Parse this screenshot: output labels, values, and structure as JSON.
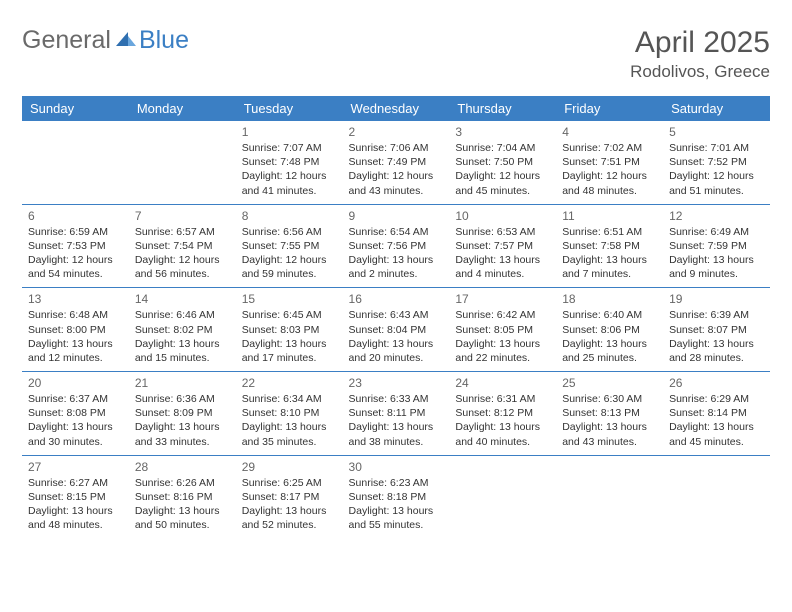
{
  "brand": {
    "part1": "General",
    "part2": "Blue"
  },
  "title": "April 2025",
  "location": "Rodolivos, Greece",
  "colors": {
    "header_bg": "#3b7fc4",
    "header_text": "#ffffff",
    "border": "#3b7fc4",
    "body_text": "#333333",
    "daynum": "#666666",
    "logo_gray": "#6a6a6a",
    "logo_blue": "#3b7fc4",
    "bg": "#ffffff"
  },
  "weekdays": [
    "Sunday",
    "Monday",
    "Tuesday",
    "Wednesday",
    "Thursday",
    "Friday",
    "Saturday"
  ],
  "weeks": [
    [
      null,
      null,
      {
        "d": "1",
        "sr": "Sunrise: 7:07 AM",
        "ss": "Sunset: 7:48 PM",
        "dl1": "Daylight: 12 hours",
        "dl2": "and 41 minutes."
      },
      {
        "d": "2",
        "sr": "Sunrise: 7:06 AM",
        "ss": "Sunset: 7:49 PM",
        "dl1": "Daylight: 12 hours",
        "dl2": "and 43 minutes."
      },
      {
        "d": "3",
        "sr": "Sunrise: 7:04 AM",
        "ss": "Sunset: 7:50 PM",
        "dl1": "Daylight: 12 hours",
        "dl2": "and 45 minutes."
      },
      {
        "d": "4",
        "sr": "Sunrise: 7:02 AM",
        "ss": "Sunset: 7:51 PM",
        "dl1": "Daylight: 12 hours",
        "dl2": "and 48 minutes."
      },
      {
        "d": "5",
        "sr": "Sunrise: 7:01 AM",
        "ss": "Sunset: 7:52 PM",
        "dl1": "Daylight: 12 hours",
        "dl2": "and 51 minutes."
      }
    ],
    [
      {
        "d": "6",
        "sr": "Sunrise: 6:59 AM",
        "ss": "Sunset: 7:53 PM",
        "dl1": "Daylight: 12 hours",
        "dl2": "and 54 minutes."
      },
      {
        "d": "7",
        "sr": "Sunrise: 6:57 AM",
        "ss": "Sunset: 7:54 PM",
        "dl1": "Daylight: 12 hours",
        "dl2": "and 56 minutes."
      },
      {
        "d": "8",
        "sr": "Sunrise: 6:56 AM",
        "ss": "Sunset: 7:55 PM",
        "dl1": "Daylight: 12 hours",
        "dl2": "and 59 minutes."
      },
      {
        "d": "9",
        "sr": "Sunrise: 6:54 AM",
        "ss": "Sunset: 7:56 PM",
        "dl1": "Daylight: 13 hours",
        "dl2": "and 2 minutes."
      },
      {
        "d": "10",
        "sr": "Sunrise: 6:53 AM",
        "ss": "Sunset: 7:57 PM",
        "dl1": "Daylight: 13 hours",
        "dl2": "and 4 minutes."
      },
      {
        "d": "11",
        "sr": "Sunrise: 6:51 AM",
        "ss": "Sunset: 7:58 PM",
        "dl1": "Daylight: 13 hours",
        "dl2": "and 7 minutes."
      },
      {
        "d": "12",
        "sr": "Sunrise: 6:49 AM",
        "ss": "Sunset: 7:59 PM",
        "dl1": "Daylight: 13 hours",
        "dl2": "and 9 minutes."
      }
    ],
    [
      {
        "d": "13",
        "sr": "Sunrise: 6:48 AM",
        "ss": "Sunset: 8:00 PM",
        "dl1": "Daylight: 13 hours",
        "dl2": "and 12 minutes."
      },
      {
        "d": "14",
        "sr": "Sunrise: 6:46 AM",
        "ss": "Sunset: 8:02 PM",
        "dl1": "Daylight: 13 hours",
        "dl2": "and 15 minutes."
      },
      {
        "d": "15",
        "sr": "Sunrise: 6:45 AM",
        "ss": "Sunset: 8:03 PM",
        "dl1": "Daylight: 13 hours",
        "dl2": "and 17 minutes."
      },
      {
        "d": "16",
        "sr": "Sunrise: 6:43 AM",
        "ss": "Sunset: 8:04 PM",
        "dl1": "Daylight: 13 hours",
        "dl2": "and 20 minutes."
      },
      {
        "d": "17",
        "sr": "Sunrise: 6:42 AM",
        "ss": "Sunset: 8:05 PM",
        "dl1": "Daylight: 13 hours",
        "dl2": "and 22 minutes."
      },
      {
        "d": "18",
        "sr": "Sunrise: 6:40 AM",
        "ss": "Sunset: 8:06 PM",
        "dl1": "Daylight: 13 hours",
        "dl2": "and 25 minutes."
      },
      {
        "d": "19",
        "sr": "Sunrise: 6:39 AM",
        "ss": "Sunset: 8:07 PM",
        "dl1": "Daylight: 13 hours",
        "dl2": "and 28 minutes."
      }
    ],
    [
      {
        "d": "20",
        "sr": "Sunrise: 6:37 AM",
        "ss": "Sunset: 8:08 PM",
        "dl1": "Daylight: 13 hours",
        "dl2": "and 30 minutes."
      },
      {
        "d": "21",
        "sr": "Sunrise: 6:36 AM",
        "ss": "Sunset: 8:09 PM",
        "dl1": "Daylight: 13 hours",
        "dl2": "and 33 minutes."
      },
      {
        "d": "22",
        "sr": "Sunrise: 6:34 AM",
        "ss": "Sunset: 8:10 PM",
        "dl1": "Daylight: 13 hours",
        "dl2": "and 35 minutes."
      },
      {
        "d": "23",
        "sr": "Sunrise: 6:33 AM",
        "ss": "Sunset: 8:11 PM",
        "dl1": "Daylight: 13 hours",
        "dl2": "and 38 minutes."
      },
      {
        "d": "24",
        "sr": "Sunrise: 6:31 AM",
        "ss": "Sunset: 8:12 PM",
        "dl1": "Daylight: 13 hours",
        "dl2": "and 40 minutes."
      },
      {
        "d": "25",
        "sr": "Sunrise: 6:30 AM",
        "ss": "Sunset: 8:13 PM",
        "dl1": "Daylight: 13 hours",
        "dl2": "and 43 minutes."
      },
      {
        "d": "26",
        "sr": "Sunrise: 6:29 AM",
        "ss": "Sunset: 8:14 PM",
        "dl1": "Daylight: 13 hours",
        "dl2": "and 45 minutes."
      }
    ],
    [
      {
        "d": "27",
        "sr": "Sunrise: 6:27 AM",
        "ss": "Sunset: 8:15 PM",
        "dl1": "Daylight: 13 hours",
        "dl2": "and 48 minutes."
      },
      {
        "d": "28",
        "sr": "Sunrise: 6:26 AM",
        "ss": "Sunset: 8:16 PM",
        "dl1": "Daylight: 13 hours",
        "dl2": "and 50 minutes."
      },
      {
        "d": "29",
        "sr": "Sunrise: 6:25 AM",
        "ss": "Sunset: 8:17 PM",
        "dl1": "Daylight: 13 hours",
        "dl2": "and 52 minutes."
      },
      {
        "d": "30",
        "sr": "Sunrise: 6:23 AM",
        "ss": "Sunset: 8:18 PM",
        "dl1": "Daylight: 13 hours",
        "dl2": "and 55 minutes."
      },
      null,
      null,
      null
    ]
  ]
}
